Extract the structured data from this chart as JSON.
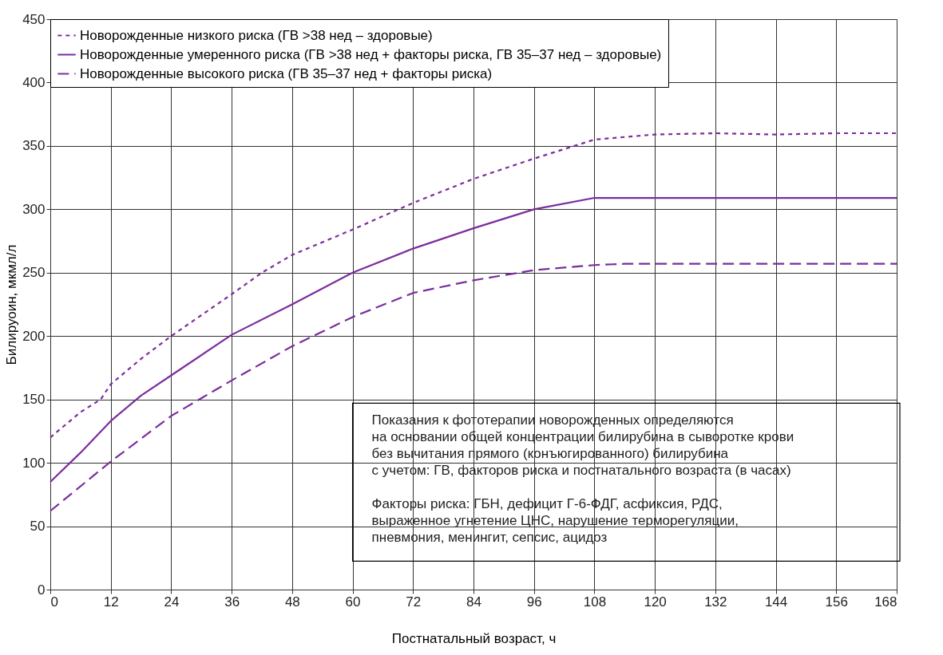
{
  "chart_data": {
    "type": "line",
    "xlabel": "Постнатальный возраст, ч",
    "ylabel": "Билируоин, мкмл/л",
    "xlim": [
      0,
      168
    ],
    "xticks": [
      0,
      12,
      24,
      36,
      48,
      60,
      72,
      84,
      96,
      108,
      120,
      132,
      144,
      156,
      168
    ],
    "ylim": [
      0,
      450
    ],
    "yticks": [
      0,
      50,
      100,
      150,
      200,
      250,
      300,
      350,
      400,
      450
    ],
    "grid": true,
    "legend": "top left",
    "series": [
      {
        "name": "Новорожденные низкого риска (ГВ >38 нед – здоровые)",
        "color": "#7b2d9e",
        "line_style": "dotted",
        "x": [
          0,
          6,
          10,
          12,
          18,
          24,
          36,
          42,
          48,
          60,
          72,
          84,
          96,
          108,
          120,
          132,
          144,
          156,
          168
        ],
        "values": [
          120,
          140,
          150,
          162,
          182,
          200,
          233,
          250,
          264,
          284,
          305,
          324,
          340,
          355,
          359,
          360,
          359,
          360,
          360
        ]
      },
      {
        "name": "Новорожденные умеренного риска (ГВ >38 нед + факторы риска, ГВ 35–37 нед – здоровые)",
        "color": "#7b2d9e",
        "line_style": "solid",
        "x": [
          0,
          6,
          12,
          18,
          24,
          36,
          48,
          60,
          72,
          84,
          96,
          108,
          120,
          168
        ],
        "values": [
          85,
          108,
          133,
          153,
          169,
          201,
          225,
          250,
          269,
          285,
          300,
          309,
          309,
          309
        ]
      },
      {
        "name": "Новорожденные высокого риска (ГВ 35–37 нед + факторы риска)",
        "color": "#7b2d9e",
        "line_style": "dashed",
        "x": [
          0,
          12,
          24,
          36,
          48,
          60,
          72,
          84,
          96,
          108,
          114,
          168
        ],
        "values": [
          62,
          101,
          137,
          165,
          192,
          215,
          234,
          244,
          252,
          256,
          257,
          257
        ]
      }
    ],
    "annotations": [
      "Показания к фототерапии новорожденных определяются\nна основании общей концентрации билирубина в сыворотке крови\nбез вычитания прямого (конъюгированного) билирубина\nс учетом: ГВ, факторов риска и постнатального возраста (в часах)",
      "Факторы риска: ГБН, дефицит Г-6-ФДГ, асфиксия, РДС,\nвыраженное угнетение ЦНС, нарушение терморегуляции,\nпневмония, менингит, сепсис, ацидоз"
    ]
  }
}
